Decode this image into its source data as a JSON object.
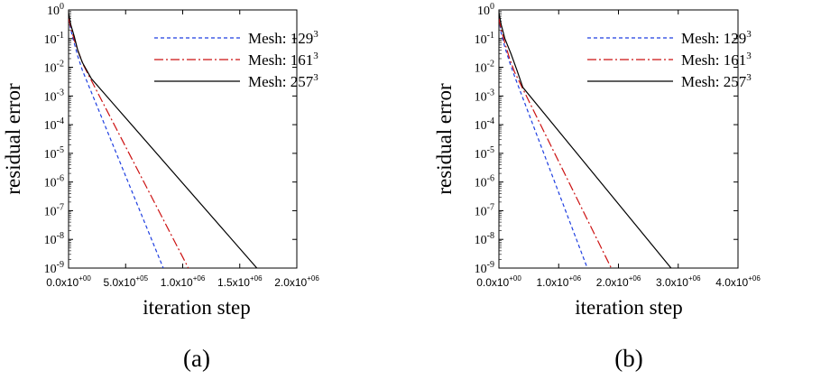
{
  "chart_data": [
    {
      "type": "line",
      "panel_label": "(a)",
      "xlabel": "iteration step",
      "ylabel": "residual error",
      "xlim": [
        0,
        2000000
      ],
      "ylim_exponent": [
        -9,
        0
      ],
      "y_scale": "log",
      "x_ticks": [
        {
          "value": 0,
          "mantissa": "0.0x10",
          "exp": "+00"
        },
        {
          "value": 500000,
          "mantissa": "5.0x10",
          "exp": "+05"
        },
        {
          "value": 1000000,
          "mantissa": "1.0x10",
          "exp": "+06"
        },
        {
          "value": 1500000,
          "mantissa": "1.5x10",
          "exp": "+06"
        },
        {
          "value": 2000000,
          "mantissa": "2.0x10",
          "exp": "+06"
        }
      ],
      "y_ticks": [
        {
          "exp_value": 0,
          "base": "10",
          "exp": "0"
        },
        {
          "exp_value": -1,
          "base": "10",
          "exp": "-1"
        },
        {
          "exp_value": -2,
          "base": "10",
          "exp": "-2"
        },
        {
          "exp_value": -3,
          "base": "10",
          "exp": "-3"
        },
        {
          "exp_value": -4,
          "base": "10",
          "exp": "-4"
        },
        {
          "exp_value": -5,
          "base": "10",
          "exp": "-5"
        },
        {
          "exp_value": -6,
          "base": "10",
          "exp": "-6"
        },
        {
          "exp_value": -7,
          "base": "10",
          "exp": "-7"
        },
        {
          "exp_value": -8,
          "base": "10",
          "exp": "-8"
        },
        {
          "exp_value": -9,
          "base": "10",
          "exp": "-9"
        }
      ],
      "legend_position": "top-right",
      "series": [
        {
          "name": "Mesh: 129",
          "name_sup": "3",
          "color": "#1f3fe0",
          "dash": "dash",
          "points": [
            [
              0,
              0.5
            ],
            [
              20000,
              0.2
            ],
            [
              50000,
              0.07
            ],
            [
              80000,
              0.025
            ],
            [
              120000,
              0.008
            ],
            [
              830000,
              1e-09
            ]
          ]
        },
        {
          "name": "Mesh: 161",
          "name_sup": "3",
          "color": "#cc1111",
          "dash": "dashdot",
          "points": [
            [
              0,
              0.5
            ],
            [
              20000,
              0.25
            ],
            [
              50000,
              0.09
            ],
            [
              80000,
              0.04
            ],
            [
              130000,
              0.012
            ],
            [
              1050000,
              1e-09
            ]
          ]
        },
        {
          "name": "Mesh: 257",
          "name_sup": "3",
          "color": "#000000",
          "dash": "solid",
          "points": [
            [
              0,
              0.8
            ],
            [
              20000,
              0.3
            ],
            [
              50000,
              0.12
            ],
            [
              80000,
              0.04
            ],
            [
              120000,
              0.015
            ],
            [
              200000,
              0.004
            ],
            [
              1650000,
              1e-09
            ]
          ]
        }
      ]
    },
    {
      "type": "line",
      "panel_label": "(b)",
      "xlabel": "iteration step",
      "ylabel": "residual error",
      "xlim": [
        0,
        4000000
      ],
      "ylim_exponent": [
        -9,
        0
      ],
      "y_scale": "log",
      "x_ticks": [
        {
          "value": 0,
          "mantissa": "0.0x10",
          "exp": "+00"
        },
        {
          "value": 1000000,
          "mantissa": "1.0x10",
          "exp": "+06"
        },
        {
          "value": 2000000,
          "mantissa": "2.0x10",
          "exp": "+06"
        },
        {
          "value": 3000000,
          "mantissa": "3.0x10",
          "exp": "+06"
        },
        {
          "value": 4000000,
          "mantissa": "4.0x10",
          "exp": "+06"
        }
      ],
      "y_ticks": [
        {
          "exp_value": 0,
          "base": "10",
          "exp": "0"
        },
        {
          "exp_value": -1,
          "base": "10",
          "exp": "-1"
        },
        {
          "exp_value": -2,
          "base": "10",
          "exp": "-2"
        },
        {
          "exp_value": -3,
          "base": "10",
          "exp": "-3"
        },
        {
          "exp_value": -4,
          "base": "10",
          "exp": "-4"
        },
        {
          "exp_value": -5,
          "base": "10",
          "exp": "-5"
        },
        {
          "exp_value": -6,
          "base": "10",
          "exp": "-6"
        },
        {
          "exp_value": -7,
          "base": "10",
          "exp": "-7"
        },
        {
          "exp_value": -8,
          "base": "10",
          "exp": "-8"
        },
        {
          "exp_value": -9,
          "base": "10",
          "exp": "-9"
        }
      ],
      "legend_position": "top-right",
      "series": [
        {
          "name": "Mesh: 129",
          "name_sup": "3",
          "color": "#1f3fe0",
          "dash": "dash",
          "points": [
            [
              0,
              0.5
            ],
            [
              40000,
              0.15
            ],
            [
              100000,
              0.05
            ],
            [
              180000,
              0.015
            ],
            [
              260000,
              0.005
            ],
            [
              1480000,
              1e-09
            ]
          ]
        },
        {
          "name": "Mesh: 161",
          "name_sup": "3",
          "color": "#cc1111",
          "dash": "dashdot",
          "points": [
            [
              0,
              0.5
            ],
            [
              40000,
              0.2
            ],
            [
              100000,
              0.07
            ],
            [
              180000,
              0.02
            ],
            [
              260000,
              0.007
            ],
            [
              1880000,
              1e-09
            ]
          ]
        },
        {
          "name": "Mesh: 257",
          "name_sup": "3",
          "color": "#000000",
          "dash": "solid",
          "points": [
            [
              0,
              0.8
            ],
            [
              40000,
              0.3
            ],
            [
              100000,
              0.1
            ],
            [
              200000,
              0.03
            ],
            [
              300000,
              0.008
            ],
            [
              400000,
              0.002
            ],
            [
              2880000,
              1e-09
            ]
          ]
        }
      ]
    }
  ]
}
